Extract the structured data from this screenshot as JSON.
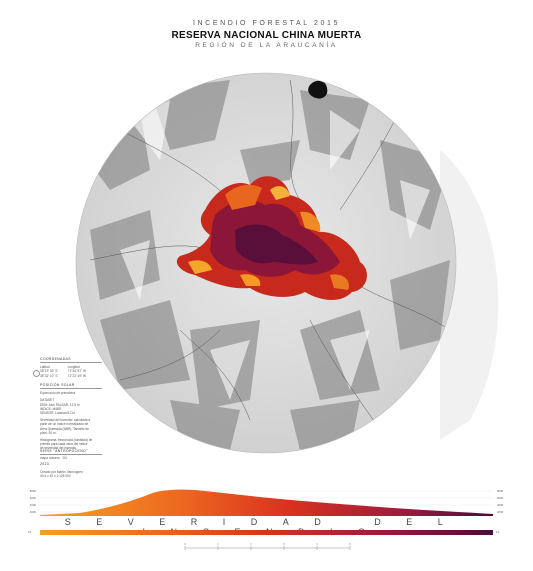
{
  "header": {
    "line1": "INCENDIO FORESTAL 2015",
    "title": "RESERVA NACIONAL CHINA MUERTA",
    "region": "REGIÓN DE LA ARAUCANÍA"
  },
  "sidebar": {
    "coords_heading": "COORDENADAS",
    "lat_label": "Latitud",
    "lon_label": "Longitud",
    "lat1": "38°19' 52\" S",
    "lat2": "38°32' 10\" S",
    "lon1": "71°34' 51\" W",
    "lon2": "71°23' 49\" W",
    "solar_heading": "POSICIÓN SOLAR",
    "solar_text": "Equinoccio de primavera",
    "dataset_text": "DATASET",
    "desc_lines": [
      "DEM: Alos PALSAR, 12.5 m",
      "INDICE: dNBR",
      "SENSOR: Landsat 8 OLI"
    ],
    "note_lines": [
      "Severidad del incendio: calculada a",
      "partir de un índice normalizado de",
      "Área Quemada (NBR), Tamaño de",
      "píxel: 30 m."
    ],
    "note2_lines": [
      "Histograma: frecuencia (cantidad) de",
      "píxeles para cada valor del índice",
      "de severidad del incendio."
    ],
    "series_label": "SERIE \"ANTROPOCENO\"",
    "series_sub": "mapa número",
    "series_number": "01",
    "year": "2023",
    "credit_label": "Creado por",
    "credit_name": "Martín Vannoppen",
    "credit_meta": "40.4 x 40 x 1:125.000"
  },
  "histogram": {
    "x_axis_label": "SEVERIDAD DEL INCENDIO",
    "y_ticks": [
      "8000",
      "6000",
      "4000",
      "2000",
      "1000"
    ],
    "gradient_min": "0.1",
    "gradient_max": "1.1"
  },
  "scale": {
    "ticks": [
      "0",
      "1",
      "2",
      "3",
      "4",
      "5"
    ]
  },
  "colors": {
    "low": "#f6a11f",
    "mid": "#d8321f",
    "high": "#4a0c3b"
  }
}
